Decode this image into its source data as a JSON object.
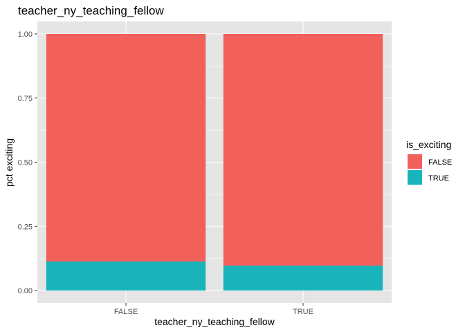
{
  "chart_data": {
    "type": "bar",
    "stacked": true,
    "title": "teacher_ny_teaching_fellow",
    "xlabel": "teacher_ny_teaching_fellow",
    "ylabel": "pct exciting",
    "categories": [
      "FALSE",
      "TRUE"
    ],
    "series": [
      {
        "name": "TRUE",
        "color": "#19b4b9",
        "values": [
          0.113,
          0.097
        ]
      },
      {
        "name": "FALSE",
        "color": "#f2605c",
        "values": [
          0.887,
          0.903
        ]
      }
    ],
    "ylim": [
      0,
      1
    ],
    "yticks": [
      "0.00",
      "0.25",
      "0.50",
      "0.75",
      "1.00"
    ],
    "grid": true,
    "legend": {
      "title": "is_exciting",
      "position": "right",
      "items": [
        {
          "label": "FALSE",
          "color": "#f2605c"
        },
        {
          "label": "TRUE",
          "color": "#19b4b9"
        }
      ]
    },
    "colors": {
      "panel": "#e5e5e5",
      "grid": "#ffffff"
    }
  }
}
